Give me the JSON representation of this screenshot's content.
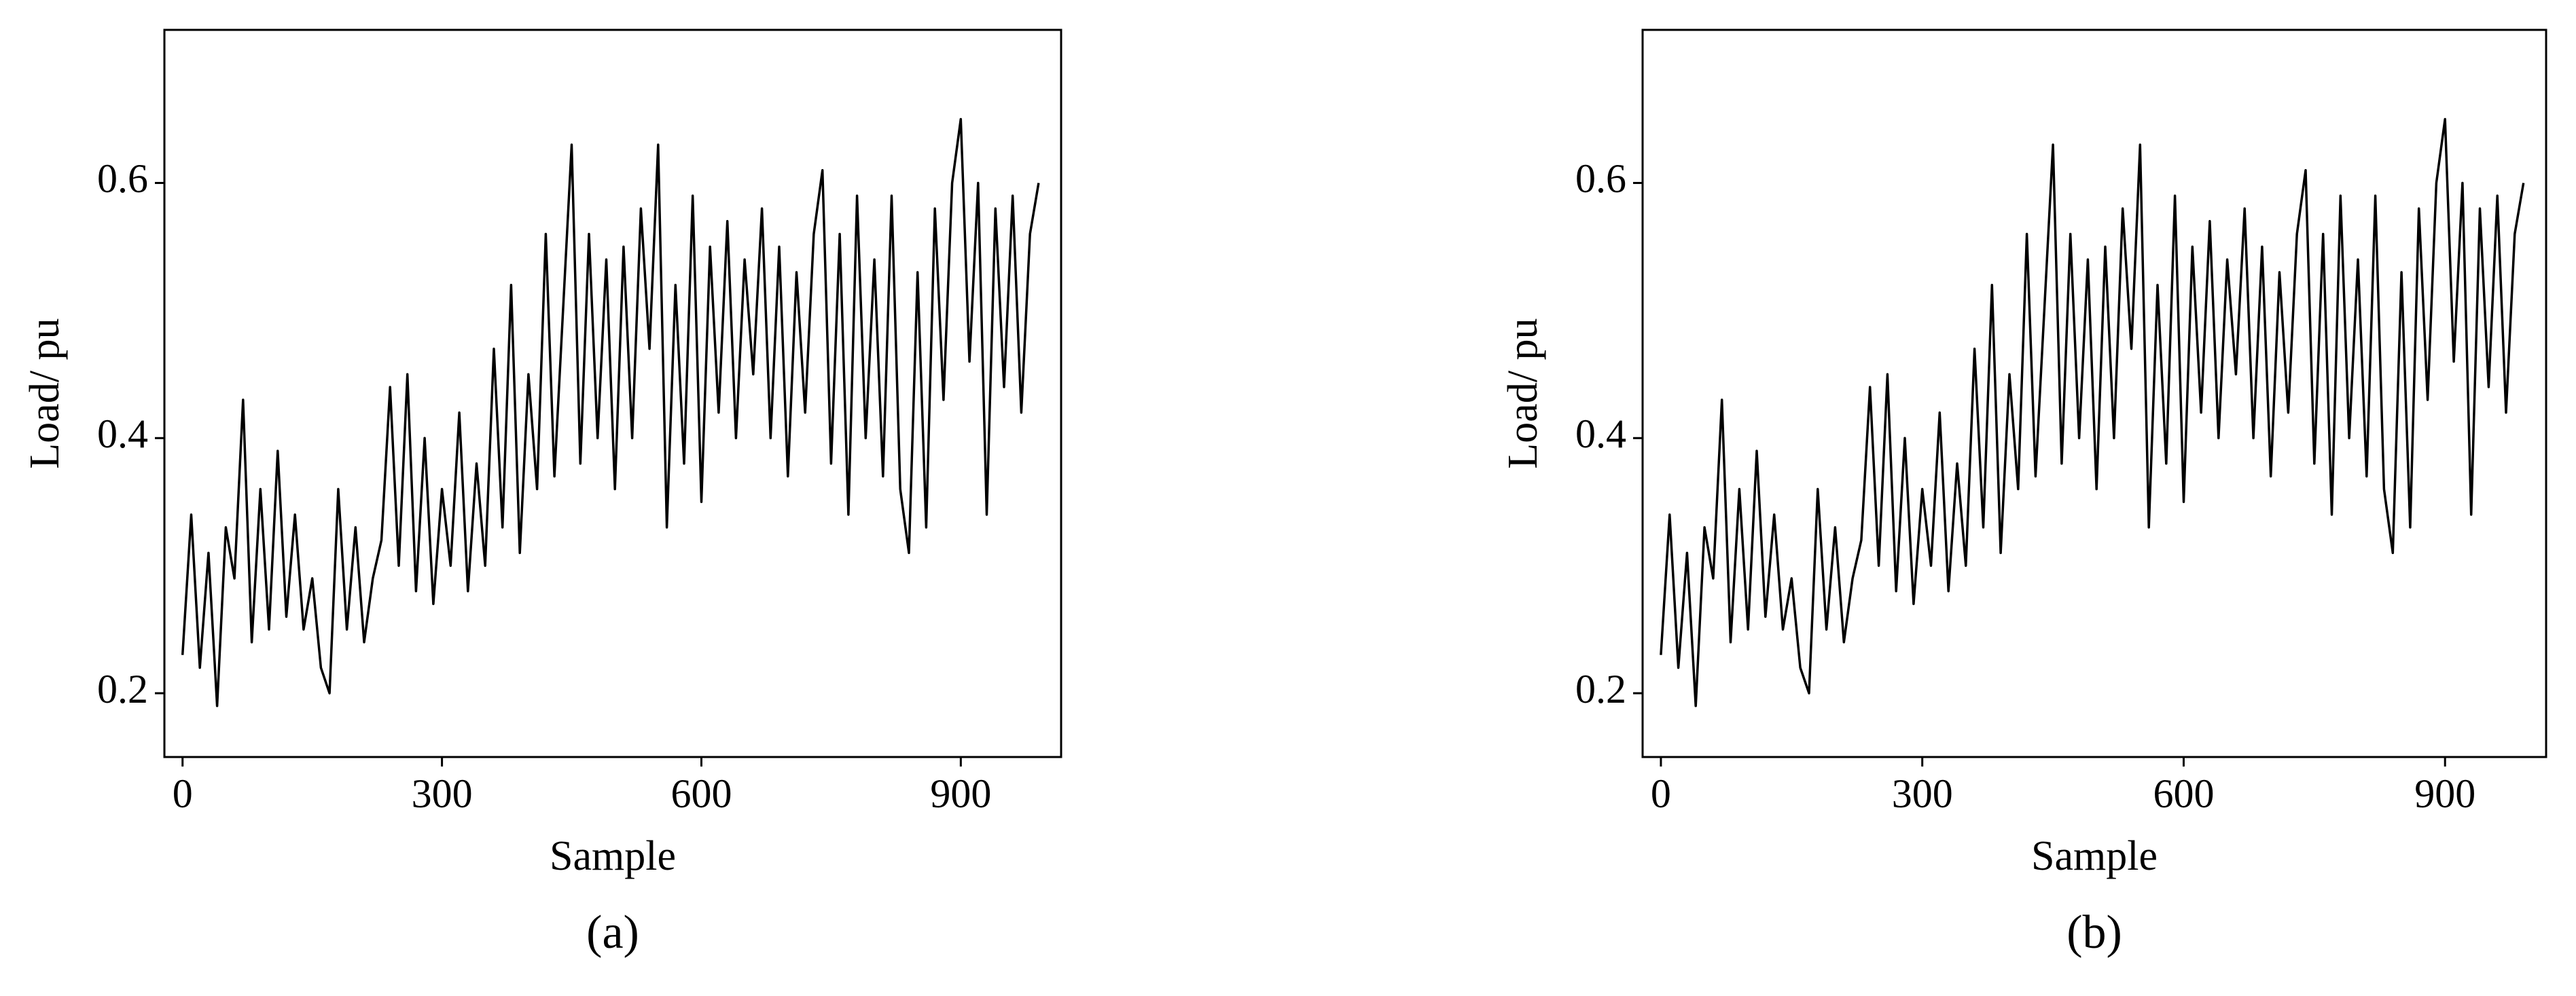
{
  "chart_data": [
    {
      "type": "line",
      "caption": "(a)",
      "x_label": "Sample",
      "y_label": "Load/ pu",
      "xlim": [
        -21,
        1016
      ],
      "xticks": [
        0,
        300,
        600,
        900
      ],
      "ylim": [
        0.15,
        0.72
      ],
      "yticks": [
        0.2,
        0.4,
        0.6
      ],
      "x": [
        0,
        10,
        20,
        30,
        40,
        50,
        60,
        70,
        80,
        90,
        100,
        110,
        120,
        130,
        140,
        150,
        160,
        170,
        180,
        190,
        200,
        210,
        220,
        230,
        240,
        250,
        260,
        270,
        280,
        290,
        300,
        310,
        320,
        330,
        340,
        350,
        360,
        370,
        380,
        390,
        400,
        410,
        420,
        430,
        440,
        450,
        460,
        470,
        480,
        490,
        500,
        510,
        520,
        530,
        540,
        550,
        560,
        570,
        580,
        590,
        600,
        610,
        620,
        630,
        640,
        650,
        660,
        670,
        680,
        690,
        700,
        710,
        720,
        730,
        740,
        750,
        760,
        770,
        780,
        790,
        800,
        810,
        820,
        830,
        840,
        850,
        860,
        870,
        880,
        890,
        900,
        910,
        920,
        930,
        940,
        950,
        960,
        970,
        980,
        990
      ],
      "series": [
        {
          "color": "#000000",
          "values": [
            0.23,
            0.34,
            0.22,
            0.31,
            0.19,
            0.33,
            0.29,
            0.43,
            0.24,
            0.36,
            0.25,
            0.39,
            0.26,
            0.34,
            0.25,
            0.29,
            0.22,
            0.2,
            0.36,
            0.25,
            0.33,
            0.24,
            0.29,
            0.32,
            0.44,
            0.3,
            0.45,
            0.28,
            0.4,
            0.27,
            0.36,
            0.3,
            0.42,
            0.28,
            0.38,
            0.3,
            0.47,
            0.33,
            0.52,
            0.31,
            0.45,
            0.36,
            0.56,
            0.37,
            0.5,
            0.63,
            0.38,
            0.56,
            0.4,
            0.54,
            0.36,
            0.55,
            0.4,
            0.58,
            0.47,
            0.63,
            0.33,
            0.52,
            0.38,
            0.59,
            0.35,
            0.55,
            0.42,
            0.57,
            0.4,
            0.54,
            0.45,
            0.58,
            0.4,
            0.55,
            0.37,
            0.53,
            0.42,
            0.56,
            0.61,
            0.38,
            0.56,
            0.34,
            0.59,
            0.4,
            0.54,
            0.37,
            0.59,
            0.36,
            0.31,
            0.53,
            0.33,
            0.58,
            0.43,
            0.6,
            0.65,
            0.46,
            0.6,
            0.34,
            0.58,
            0.44,
            0.59,
            0.42,
            0.56,
            0.6
          ]
        }
      ]
    },
    {
      "type": "line",
      "caption": "(b)",
      "x_label": "Sample",
      "y_label": "Load/ pu",
      "xlim": [
        -21,
        1016
      ],
      "xticks": [
        0,
        300,
        600,
        900
      ],
      "ylim": [
        0.15,
        0.72
      ],
      "yticks": [
        0.2,
        0.4,
        0.6
      ],
      "x": [
        0,
        10,
        20,
        30,
        40,
        50,
        60,
        70,
        80,
        90,
        100,
        110,
        120,
        130,
        140,
        150,
        160,
        170,
        180,
        190,
        200,
        210,
        220,
        230,
        240,
        250,
        260,
        270,
        280,
        290,
        300,
        310,
        320,
        330,
        340,
        350,
        360,
        370,
        380,
        390,
        400,
        410,
        420,
        430,
        440,
        450,
        460,
        470,
        480,
        490,
        500,
        510,
        520,
        530,
        540,
        550,
        560,
        570,
        580,
        590,
        600,
        610,
        620,
        630,
        640,
        650,
        660,
        670,
        680,
        690,
        700,
        710,
        720,
        730,
        740,
        750,
        760,
        770,
        780,
        790,
        800,
        810,
        820,
        830,
        840,
        850,
        860,
        870,
        880,
        890,
        900,
        910,
        920,
        930,
        940,
        950,
        960,
        970,
        980,
        990
      ],
      "series": [
        {
          "color": "#000000",
          "values": [
            0.23,
            0.34,
            0.22,
            0.31,
            0.19,
            0.33,
            0.29,
            0.43,
            0.24,
            0.36,
            0.25,
            0.39,
            0.26,
            0.34,
            0.25,
            0.29,
            0.22,
            0.2,
            0.36,
            0.25,
            0.33,
            0.24,
            0.29,
            0.32,
            0.44,
            0.3,
            0.45,
            0.28,
            0.4,
            0.27,
            0.36,
            0.3,
            0.42,
            0.28,
            0.38,
            0.3,
            0.47,
            0.33,
            0.52,
            0.31,
            0.45,
            0.36,
            0.56,
            0.37,
            0.5,
            0.63,
            0.38,
            0.56,
            0.4,
            0.54,
            0.36,
            0.55,
            0.4,
            0.58,
            0.47,
            0.63,
            0.33,
            0.52,
            0.38,
            0.59,
            0.35,
            0.55,
            0.42,
            0.57,
            0.4,
            0.54,
            0.45,
            0.58,
            0.4,
            0.55,
            0.37,
            0.53,
            0.42,
            0.56,
            0.61,
            0.38,
            0.56,
            0.34,
            0.59,
            0.4,
            0.54,
            0.37,
            0.59,
            0.36,
            0.31,
            0.53,
            0.33,
            0.58,
            0.43,
            0.6,
            0.65,
            0.46,
            0.6,
            0.34,
            0.58,
            0.44,
            0.59,
            0.42,
            0.56,
            0.6
          ]
        }
      ]
    }
  ]
}
